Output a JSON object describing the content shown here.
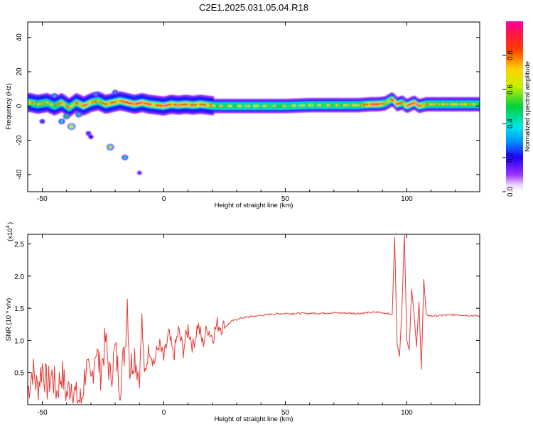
{
  "title": "C2E1.2025.031.05.04.R18",
  "colors": {
    "snr_line": "#e53935",
    "axis": "#000000"
  },
  "chart_data": [
    {
      "type": "heatmap",
      "xlabel": "Height of straight line (km)",
      "ylabel": "Frequency (Hz)",
      "xlim": [
        -56,
        130
      ],
      "ylim": [
        -50,
        49
      ],
      "x_ticks": [
        -50,
        0,
        50,
        100
      ],
      "y_ticks": [
        -40,
        -20,
        0,
        20,
        40
      ],
      "colorbar": {
        "label": "Normalized spectral amplitude",
        "range": [
          0,
          1
        ],
        "ticks": [
          "0.0",
          "0.2",
          "0.4",
          "0.6",
          "0.8"
        ],
        "colormap": "rainbow (white-purple-blue-cyan-green-yellow-orange-red-magenta)"
      },
      "ridge": [
        [
          -55,
          2,
          0.75
        ],
        [
          -52,
          1,
          0.65
        ],
        [
          -48,
          2,
          0.7
        ],
        [
          -45,
          0,
          0.6
        ],
        [
          -42,
          2,
          0.8
        ],
        [
          -39,
          -1,
          0.7
        ],
        [
          -36,
          2,
          0.75
        ],
        [
          -33,
          0,
          0.85
        ],
        [
          -30,
          2,
          0.8
        ],
        [
          -27,
          3,
          0.7
        ],
        [
          -24,
          1,
          0.85
        ],
        [
          -21,
          2,
          0.8
        ],
        [
          -18,
          3,
          0.85
        ],
        [
          -15,
          2,
          0.95
        ],
        [
          -12,
          1,
          0.9
        ],
        [
          -9,
          2,
          0.95
        ],
        [
          -6,
          1,
          0.85
        ],
        [
          -3,
          0.5,
          0.8
        ],
        [
          0,
          0,
          0.95
        ],
        [
          3,
          1,
          0.85
        ],
        [
          6,
          0.5,
          0.85
        ],
        [
          9,
          1,
          0.9
        ],
        [
          12,
          0.5,
          0.8
        ],
        [
          15,
          1,
          0.85
        ],
        [
          18,
          0.5,
          0.8
        ],
        [
          21,
          0,
          0.6
        ],
        [
          30,
          0,
          0.55
        ],
        [
          40,
          0,
          0.55
        ],
        [
          50,
          0,
          0.55
        ],
        [
          60,
          0.5,
          0.55
        ],
        [
          70,
          0.5,
          0.6
        ],
        [
          80,
          0.5,
          0.62
        ],
        [
          85,
          1,
          0.9
        ],
        [
          88,
          1,
          0.95
        ],
        [
          91,
          1.5,
          0.7
        ],
        [
          94,
          4,
          0.8
        ],
        [
          96,
          1,
          0.95
        ],
        [
          98,
          2,
          0.7
        ],
        [
          100,
          0,
          0.85
        ],
        [
          103,
          2,
          0.95
        ],
        [
          105,
          0,
          0.85
        ],
        [
          108,
          1,
          0.7
        ],
        [
          115,
          1,
          0.65
        ],
        [
          125,
          1,
          0.65
        ],
        [
          130,
          1,
          0.6
        ]
      ],
      "blobs": [
        [
          -38,
          -12,
          0.65
        ],
        [
          -40,
          -6,
          0.5
        ],
        [
          -42,
          -9,
          0.4
        ],
        [
          -35,
          -5,
          0.45
        ],
        [
          -22,
          -24,
          0.6
        ],
        [
          -16,
          -30,
          0.4
        ],
        [
          -31,
          -16,
          0.25
        ],
        [
          -30,
          -18,
          0.2
        ],
        [
          -10,
          -39,
          0.15
        ],
        [
          -28,
          7,
          0.3
        ],
        [
          -45,
          6,
          0.35
        ],
        [
          -50,
          -9,
          0.25
        ],
        [
          -20,
          8,
          0.3
        ]
      ]
    },
    {
      "type": "line",
      "xlabel": "Height of straight line (km)",
      "ylabel": "SNR (10 * v/v)",
      "y_multiplier_label": "(x10",
      "y_multiplier_exponent": "4",
      "xlim": [
        -56,
        130
      ],
      "ylim": [
        0,
        2.65
      ],
      "x_ticks": [
        -50,
        0,
        50,
        100
      ],
      "y_ticks": [
        "0.5",
        "1.0",
        "1.5",
        "2.0",
        "2.5"
      ],
      "series": [
        {
          "points": [
            [
              -56,
              0.2
            ],
            [
              -54,
              0.55
            ],
            [
              -52,
              0.25
            ],
            [
              -50,
              0.6
            ],
            [
              -48,
              0.3
            ],
            [
              -46,
              0.45
            ],
            [
              -44,
              0.2
            ],
            [
              -42,
              0.5
            ],
            [
              -40,
              0.15
            ],
            [
              -38,
              0.35
            ],
            [
              -36,
              0.1
            ],
            [
              -34,
              0.05
            ],
            [
              -32,
              0.6
            ],
            [
              -30,
              0.3
            ],
            [
              -28,
              0.9
            ],
            [
              -26,
              0.5
            ],
            [
              -24,
              1.0
            ],
            [
              -22,
              0.4
            ],
            [
              -20,
              0.85
            ],
            [
              -18,
              0.3
            ],
            [
              -16,
              0.9
            ],
            [
              -15,
              1.65
            ],
            [
              -14,
              0.55
            ],
            [
              -12,
              0.8
            ],
            [
              -10,
              0.4
            ],
            [
              -9,
              1.35
            ],
            [
              -8,
              0.45
            ],
            [
              -6,
              0.9
            ],
            [
              -4,
              0.65
            ],
            [
              -2,
              0.95
            ],
            [
              0,
              0.7
            ],
            [
              2,
              1.1
            ],
            [
              4,
              0.75
            ],
            [
              6,
              1.15
            ],
            [
              8,
              0.85
            ],
            [
              10,
              1.2
            ],
            [
              12,
              0.9
            ],
            [
              14,
              1.25
            ],
            [
              16,
              0.95
            ],
            [
              18,
              1.2
            ],
            [
              20,
              1.05
            ],
            [
              22,
              1.25
            ],
            [
              25,
              1.2
            ],
            [
              28,
              1.3
            ],
            [
              32,
              1.35
            ],
            [
              36,
              1.37
            ],
            [
              40,
              1.39
            ],
            [
              45,
              1.41
            ],
            [
              50,
              1.42
            ],
            [
              60,
              1.42
            ],
            [
              70,
              1.43
            ],
            [
              80,
              1.42
            ],
            [
              88,
              1.44
            ],
            [
              92,
              1.42
            ],
            [
              94,
              1.4
            ],
            [
              95,
              2.6
            ],
            [
              96,
              0.95
            ],
            [
              97,
              0.75
            ],
            [
              98,
              1.5
            ],
            [
              99,
              2.65
            ],
            [
              100,
              1.0
            ],
            [
              101,
              0.85
            ],
            [
              102,
              1.8
            ],
            [
              103,
              1.4
            ],
            [
              104,
              0.9
            ],
            [
              105,
              1.6
            ],
            [
              106,
              0.55
            ],
            [
              107,
              1.95
            ],
            [
              108,
              1.4
            ],
            [
              110,
              1.38
            ],
            [
              115,
              1.39
            ],
            [
              120,
              1.4
            ],
            [
              125,
              1.39
            ],
            [
              130,
              1.38
            ]
          ]
        }
      ]
    }
  ]
}
